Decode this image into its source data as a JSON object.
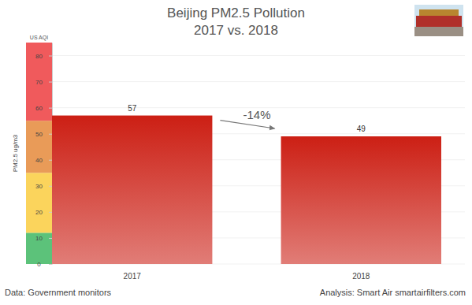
{
  "chart_data": {
    "type": "bar",
    "title": "Beijing PM2.5 Pollution",
    "subtitle": "2017 vs. 2018",
    "y_label": "PM2.5 ug/m3",
    "aqi_label": "US AQI",
    "categories": [
      "2017",
      "2018"
    ],
    "values": [
      57,
      49
    ],
    "color": "#cc1f14",
    "ylim": [
      0,
      85
    ],
    "yticks": [
      0,
      10,
      20,
      30,
      40,
      50,
      60,
      70,
      80
    ],
    "grid": true,
    "data_labels": true,
    "aqi_bands": [
      {
        "from": 0,
        "to": 12,
        "color": "#5cc27a"
      },
      {
        "from": 12,
        "to": 35,
        "color": "#fbd45c"
      },
      {
        "from": 35,
        "to": 55,
        "color": "#e99b58"
      },
      {
        "from": 55,
        "to": 85,
        "color": "#f05a5c"
      }
    ],
    "annotations": [
      {
        "text": "-14%"
      }
    ],
    "source": "Data: Government monitors",
    "credit": "Analysis: Smart Air smartairfilters.com"
  }
}
